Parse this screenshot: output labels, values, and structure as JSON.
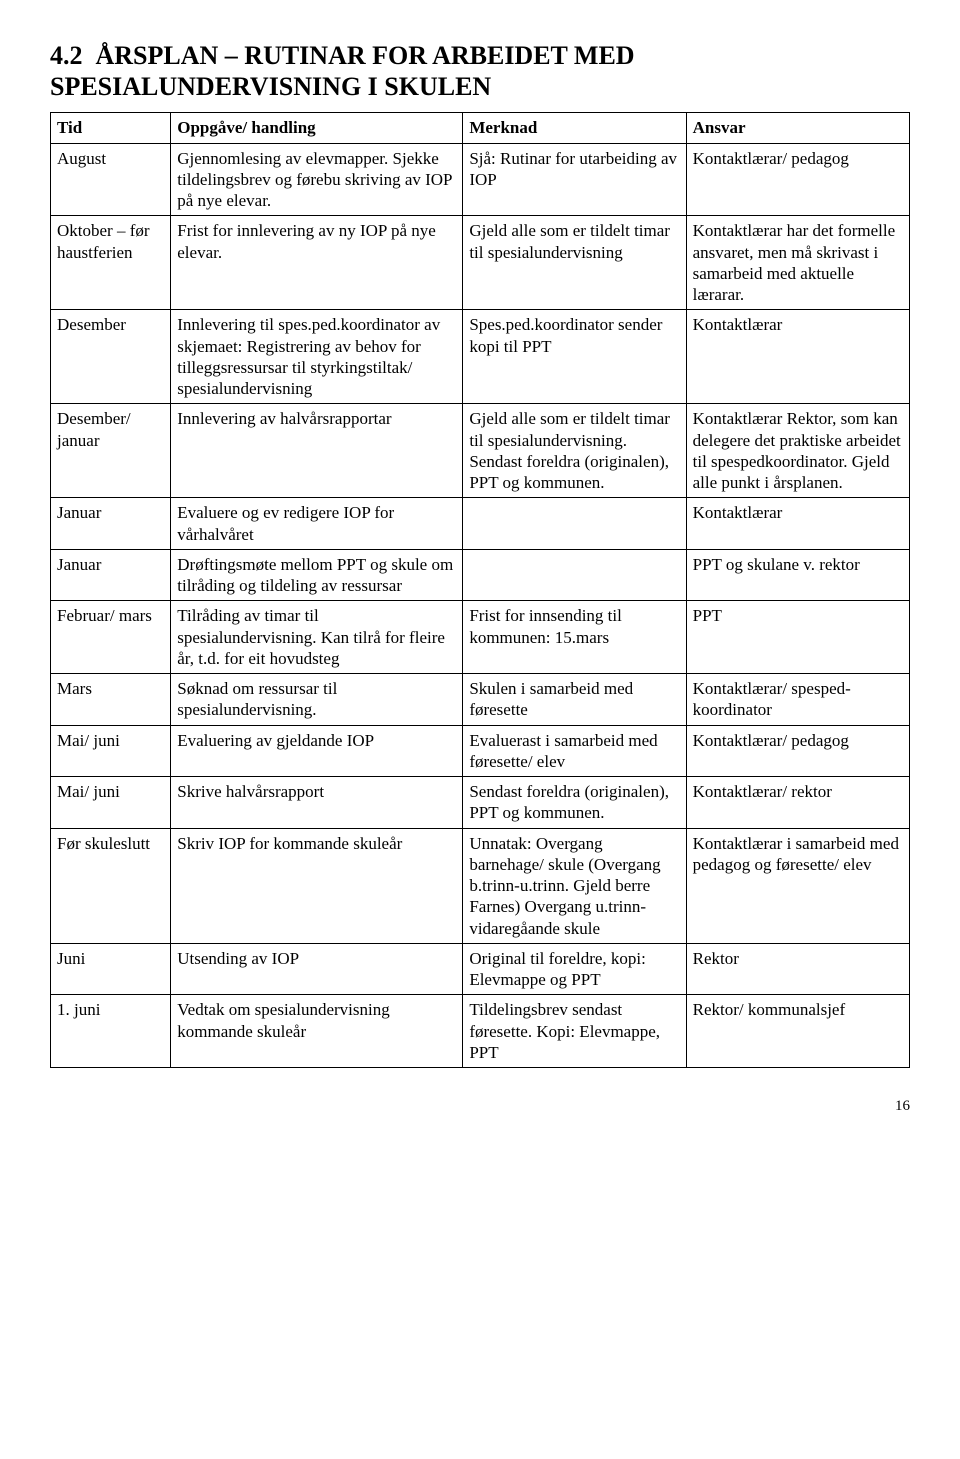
{
  "heading": {
    "section": "4.2",
    "title_line1": "ÅRSPLAN – RUTINAR FOR ARBEIDET MED",
    "title_line2": "SPESIALUNDERVISNING I SKULEN"
  },
  "columns": {
    "tid": "Tid",
    "oppgave": "Oppgåve/ handling",
    "merknad": "Merknad",
    "ansvar": "Ansvar"
  },
  "rows": [
    {
      "tid": "August",
      "oppgave": "Gjennomlesing av elevmapper. Sjekke tildelingsbrev og førebu skriving av IOP på nye elevar.",
      "merknad": "Sjå: Rutinar for utarbeiding av IOP",
      "ansvar": "Kontaktlærar/ pedagog"
    },
    {
      "tid": "Oktober – før haustferien",
      "oppgave": "Frist for innlevering av ny IOP på nye elevar.",
      "merknad": "Gjeld alle som er tildelt timar til spesialundervisning",
      "ansvar": "Kontaktlærar har det formelle ansvaret, men må skrivast i samarbeid med aktuelle lærarar."
    },
    {
      "tid": "Desember",
      "oppgave": "Innlevering til spes.ped.koordinator av skjemaet: Registrering av behov for tilleggsressursar til styrkingstiltak/ spesialundervisning",
      "merknad": "Spes.ped.koordinator sender kopi til PPT",
      "ansvar": "Kontaktlærar"
    },
    {
      "tid": "Desember/ januar",
      "oppgave": "Innlevering av halvårsrapportar",
      "merknad": "Gjeld alle som er tildelt timar til spesialundervisning. Sendast foreldra (originalen), PPT og kommunen.",
      "ansvar": "Kontaktlærar Rektor, som kan delegere det praktiske arbeidet til spespedkoordinator. Gjeld alle punkt i årsplanen."
    },
    {
      "tid": "Januar",
      "oppgave": "Evaluere og ev redigere IOP for vårhalvåret",
      "merknad": "",
      "ansvar": "Kontaktlærar"
    },
    {
      "tid": "Januar",
      "oppgave": "Drøftingsmøte mellom PPT og skule om tilråding og tildeling av ressursar",
      "merknad": "",
      "ansvar": "PPT og skulane v. rektor"
    },
    {
      "tid": "Februar/ mars",
      "oppgave": "Tilråding av timar til spesialundervisning. Kan tilrå for fleire år, t.d. for eit hovudsteg",
      "merknad": "Frist for innsending til kommunen: 15.mars",
      "ansvar": "PPT"
    },
    {
      "tid": "Mars",
      "oppgave": "Søknad om ressursar til spesialundervisning.",
      "merknad": "Skulen i samarbeid med føresette",
      "ansvar": "Kontaktlærar/ spesped-koordinator"
    },
    {
      "tid": "Mai/ juni",
      "oppgave": "Evaluering av gjeldande IOP",
      "merknad": "Evaluerast i samarbeid med føresette/ elev",
      "ansvar": "Kontaktlærar/ pedagog"
    },
    {
      "tid": "Mai/ juni",
      "oppgave": "Skrive halvårsrapport",
      "merknad": "Sendast foreldra (originalen), PPT og kommunen.",
      "ansvar": "Kontaktlærar/ rektor"
    },
    {
      "tid": "Før skuleslutt",
      "oppgave": "Skriv IOP for kommande skuleår",
      "merknad": "Unnatak: Overgang barnehage/ skule (Overgang b.trinn-u.trinn. Gjeld berre Farnes) Overgang u.trinn-vidaregåande skule",
      "ansvar": "Kontaktlærar i samarbeid med pedagog og føresette/ elev"
    },
    {
      "tid": "Juni",
      "oppgave": "Utsending av IOP",
      "merknad": "Original til foreldre, kopi: Elevmappe og PPT",
      "ansvar": "Rektor"
    },
    {
      "tid": "1. juni",
      "oppgave": "Vedtak om spesialundervisning kommande skuleår",
      "merknad": "Tildelingsbrev sendast føresette. Kopi: Elevmappe,  PPT",
      "ansvar": "Rektor/ kommunalsjef"
    }
  ],
  "page_number": "16"
}
